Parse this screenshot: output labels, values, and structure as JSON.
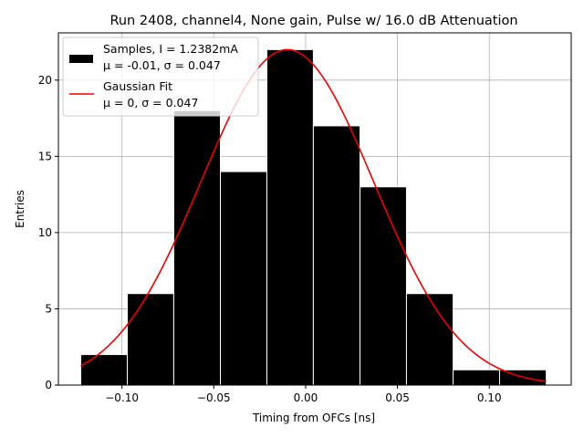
{
  "chart_data": {
    "type": "bar",
    "title": "Run 2408, channel4, None gain, Pulse w/ 16.0 dB Attenuation",
    "xlabel": "Timing from OFCs [ns]",
    "ylabel": "Entries",
    "xlim": [
      -0.1346,
      0.1446
    ],
    "ylim": [
      0,
      23.1
    ],
    "grid": true,
    "legend_position": "top-left",
    "x_ticks": [
      -0.1,
      -0.05,
      0.0,
      0.05,
      0.1
    ],
    "x_tick_labels": [
      "−0.10",
      "−0.05",
      "0.00",
      "0.05",
      "0.10"
    ],
    "y_ticks": [
      0,
      5,
      10,
      15,
      20
    ],
    "y_tick_labels": [
      "0",
      "5",
      "10",
      "15",
      "20"
    ],
    "bin_edges": [
      -0.1224,
      -0.0971,
      -0.0718,
      -0.0464,
      -0.0211,
      0.0042,
      0.0296,
      0.0549,
      0.0803,
      0.1056,
      0.131
    ],
    "values": [
      2,
      6,
      18,
      14,
      22,
      17,
      13,
      6,
      1,
      1
    ],
    "series": [
      {
        "name": "Samples, I = 1.2382mA",
        "name_line2": "μ = -0.01, σ = 0.047",
        "kind": "histogram",
        "color": "#000000",
        "edgecolor": "#ffffff"
      },
      {
        "name": "Gaussian Fit",
        "name_line2": "μ = 0, σ = 0.047",
        "kind": "line",
        "color": "#ee0000",
        "mu": -0.01,
        "sigma": 0.047,
        "amplitude": 22
      }
    ]
  }
}
